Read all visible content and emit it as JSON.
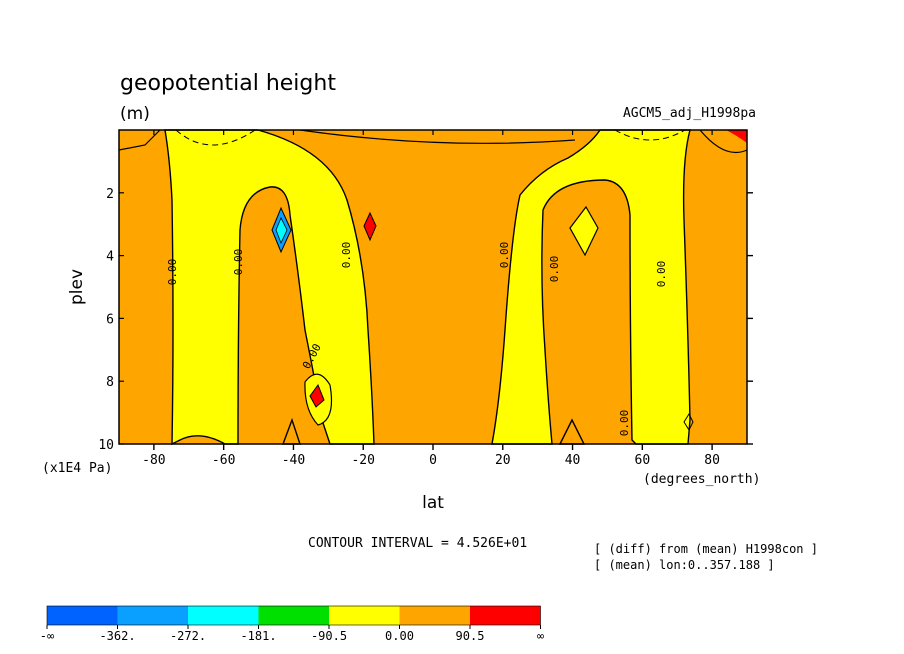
{
  "chart_data": {
    "type": "heatmap",
    "title": "geopotential height",
    "units": "(m)",
    "dataset": "AGCM5_adj_H1998pa",
    "xlabel": "lat",
    "xunit": "(degrees_north)",
    "ylabel": "plev",
    "yunit": "(x1E4 Pa)",
    "xlim": [
      -90,
      90
    ],
    "ylim": [
      10,
      0
    ],
    "x_ticks": [
      -80,
      -60,
      -40,
      -20,
      0,
      20,
      40,
      60,
      80
    ],
    "x_tick_labels": [
      "-80",
      "-60",
      "-40",
      "-20",
      "0",
      "20",
      "40",
      "60",
      "80"
    ],
    "y_ticks": [
      2,
      4,
      6,
      8,
      10
    ],
    "y_tick_labels": [
      "2",
      "4",
      "6",
      "8",
      "10"
    ],
    "contour_interval_text": "CONTOUR INTERVAL = 4.526E+01",
    "contour_labels": [
      "0.00",
      "0.00",
      "0.00",
      "0.00",
      "0.00",
      "0.00",
      "0.00",
      "0.00"
    ],
    "notes": [
      "[ (diff) from (mean) H1998con ]",
      "[ (mean) lon:0..357.188 ]"
    ],
    "colorbar": {
      "colors": [
        "#0063ff",
        "#0aa0ff",
        "#00ffff",
        "#00e000",
        "#ffff00",
        "#ffa500",
        "#ff0000"
      ],
      "labels": [
        "-∞",
        "-362.",
        "-272.",
        "-181.",
        "-90.5",
        "0.00",
        "90.5",
        "∞"
      ]
    }
  }
}
